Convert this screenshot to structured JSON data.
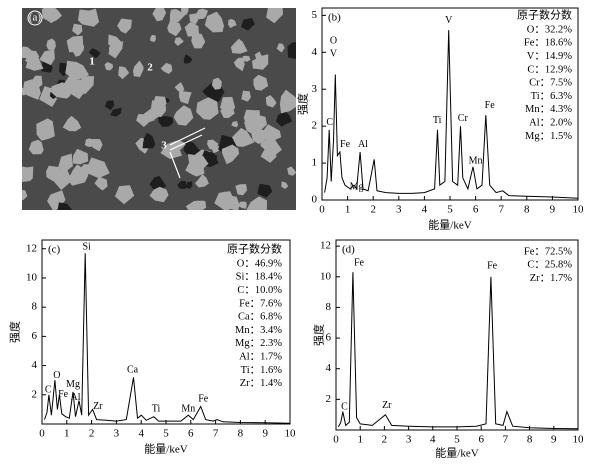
{
  "image": {
    "panel_label": "(a)",
    "markers": [
      "1",
      "2",
      "3"
    ]
  },
  "chart_data": [
    {
      "type": "line",
      "panel_label": "(b)",
      "xlabel": "能量/keV",
      "ylabel": "强度",
      "color": "#000000",
      "xlim": [
        0,
        10
      ],
      "ylim": [
        0,
        5.2
      ],
      "xticks": [
        0,
        1,
        2,
        3,
        4,
        5,
        6,
        7,
        8,
        9,
        10
      ],
      "yticks": [
        0,
        1,
        2,
        3,
        4,
        5
      ],
      "x": [
        0.1,
        0.2,
        0.28,
        0.36,
        0.45,
        0.52,
        0.6,
        0.7,
        0.78,
        0.9,
        1.1,
        1.25,
        1.35,
        1.49,
        1.6,
        1.8,
        2.04,
        2.15,
        2.5,
        3.0,
        3.5,
        4.0,
        4.4,
        4.51,
        4.6,
        4.8,
        4.95,
        5.1,
        5.3,
        5.41,
        5.5,
        5.7,
        5.9,
        6.05,
        6.25,
        6.4,
        6.55,
        6.8,
        7.06,
        7.3,
        8.0,
        9.0,
        10.0
      ],
      "y": [
        0.2,
        0.6,
        1.9,
        0.5,
        1.6,
        3.4,
        1.2,
        1.3,
        0.6,
        0.4,
        0.3,
        0.4,
        0.3,
        1.3,
        0.3,
        0.25,
        1.1,
        0.25,
        0.2,
        0.18,
        0.18,
        0.2,
        0.3,
        1.9,
        0.4,
        0.5,
        4.6,
        0.5,
        0.4,
        2.0,
        0.6,
        0.3,
        0.9,
        0.3,
        0.4,
        2.3,
        0.4,
        0.2,
        0.25,
        0.12,
        0.1,
        0.08,
        0.05
      ],
      "composition_title": "原子数分数",
      "composition": [
        "O：32.2%",
        "Fe：18.6%",
        "V：14.9%",
        "C：12.9%",
        "Cr：7.5%",
        "Ti：6.3%",
        "Mn：4.3%",
        "Al：2.0%",
        "Mg：1.5%"
      ],
      "annotations": [
        {
          "text": "O",
          "x": 0.45,
          "y": 4.3
        },
        {
          "text": "V",
          "x": 0.45,
          "y": 3.95
        },
        {
          "text": "C",
          "x": 0.3,
          "y": 2.1
        },
        {
          "text": "Fe",
          "x": 0.9,
          "y": 1.5
        },
        {
          "text": "Al",
          "x": 1.6,
          "y": 1.5
        },
        {
          "text": "Mg",
          "x": 1.35,
          "y": 0.35
        },
        {
          "text": "Ti",
          "x": 4.5,
          "y": 2.15
        },
        {
          "text": "V",
          "x": 4.95,
          "y": 4.85
        },
        {
          "text": "Cr",
          "x": 5.5,
          "y": 2.2
        },
        {
          "text": "Mn",
          "x": 6.0,
          "y": 1.05
        },
        {
          "text": "Fe",
          "x": 6.55,
          "y": 2.55
        }
      ]
    },
    {
      "type": "line",
      "panel_label": "(c)",
      "xlabel": "能量/keV",
      "ylabel": "强度",
      "color": "#000000",
      "xlim": [
        0,
        10
      ],
      "ylim": [
        0,
        12.6
      ],
      "xticks": [
        0,
        1,
        2,
        3,
        4,
        5,
        6,
        7,
        8,
        9,
        10
      ],
      "yticks": [
        2,
        4,
        6,
        8,
        10,
        12
      ],
      "x": [
        0.1,
        0.2,
        0.28,
        0.38,
        0.52,
        0.62,
        0.7,
        0.8,
        0.95,
        1.1,
        1.25,
        1.35,
        1.49,
        1.6,
        1.74,
        1.88,
        2.04,
        2.2,
        2.6,
        3.0,
        3.4,
        3.69,
        3.85,
        4.01,
        4.2,
        4.51,
        4.7,
        5.2,
        5.6,
        5.9,
        6.1,
        6.4,
        6.6,
        6.9,
        7.06,
        7.3,
        8,
        9,
        10
      ],
      "y": [
        0.3,
        0.8,
        2.0,
        0.6,
        3.0,
        1.0,
        2.0,
        0.7,
        0.5,
        0.4,
        2.2,
        0.5,
        1.6,
        0.6,
        11.7,
        0.6,
        1.0,
        0.3,
        0.25,
        0.2,
        0.3,
        3.2,
        0.4,
        0.6,
        0.25,
        0.5,
        0.2,
        0.2,
        0.2,
        0.6,
        0.3,
        1.2,
        0.3,
        0.2,
        0.3,
        0.15,
        0.1,
        0.08,
        0.05
      ],
      "composition_title": "原子数分数",
      "composition": [
        "O：46.9%",
        "Si：18.4%",
        "C：10.0%",
        "Fe：7.6%",
        "Ca：6.8%",
        "Mn：3.4%",
        "Mg：2.3%",
        "Al：1.7%",
        "Ti：1.6%",
        "Zr：1.4%"
      ],
      "annotations": [
        {
          "text": "Si",
          "x": 1.8,
          "y": 12.1
        },
        {
          "text": "O",
          "x": 0.6,
          "y": 3.3
        },
        {
          "text": "C",
          "x": 0.25,
          "y": 2.3
        },
        {
          "text": "Fe",
          "x": 0.85,
          "y": 2.0
        },
        {
          "text": "Mg",
          "x": 1.25,
          "y": 2.7
        },
        {
          "text": "Al",
          "x": 1.35,
          "y": 1.8
        },
        {
          "text": "Zr",
          "x": 2.25,
          "y": 1.2
        },
        {
          "text": "Ca",
          "x": 3.65,
          "y": 3.7
        },
        {
          "text": "Ti",
          "x": 4.6,
          "y": 1.0
        },
        {
          "text": "Mn",
          "x": 5.9,
          "y": 1.0
        },
        {
          "text": "Fe",
          "x": 6.5,
          "y": 1.7
        }
      ]
    },
    {
      "type": "line",
      "panel_label": "(d)",
      "xlabel": "能量/keV",
      "ylabel": "强度",
      "color": "#000000",
      "xlim": [
        0,
        10
      ],
      "ylim": [
        0,
        12.4
      ],
      "xticks": [
        0,
        1,
        2,
        3,
        4,
        5,
        6,
        7,
        8,
        9,
        10
      ],
      "yticks": [
        2,
        4,
        6,
        8,
        10,
        12
      ],
      "x": [
        0.1,
        0.2,
        0.28,
        0.4,
        0.55,
        0.7,
        0.85,
        1.0,
        1.5,
        2.04,
        2.3,
        3,
        4,
        5,
        5.8,
        6.2,
        6.4,
        6.6,
        6.9,
        7.06,
        7.3,
        8,
        9,
        10
      ],
      "y": [
        0.2,
        0.5,
        1.2,
        0.3,
        0.5,
        10.3,
        0.8,
        0.4,
        0.3,
        1.0,
        0.3,
        0.25,
        0.2,
        0.2,
        0.25,
        0.4,
        10.0,
        0.4,
        0.3,
        1.2,
        0.25,
        0.15,
        0.1,
        0.08
      ],
      "composition": [
        "Fe：72.5%",
        "C：25.8%",
        "Zr：1.7%"
      ],
      "annotations": [
        {
          "text": "Fe",
          "x": 0.95,
          "y": 10.9
        },
        {
          "text": "C",
          "x": 0.35,
          "y": 1.5
        },
        {
          "text": "Zr",
          "x": 2.1,
          "y": 1.6
        },
        {
          "text": "Fe",
          "x": 6.45,
          "y": 10.7
        }
      ]
    }
  ]
}
